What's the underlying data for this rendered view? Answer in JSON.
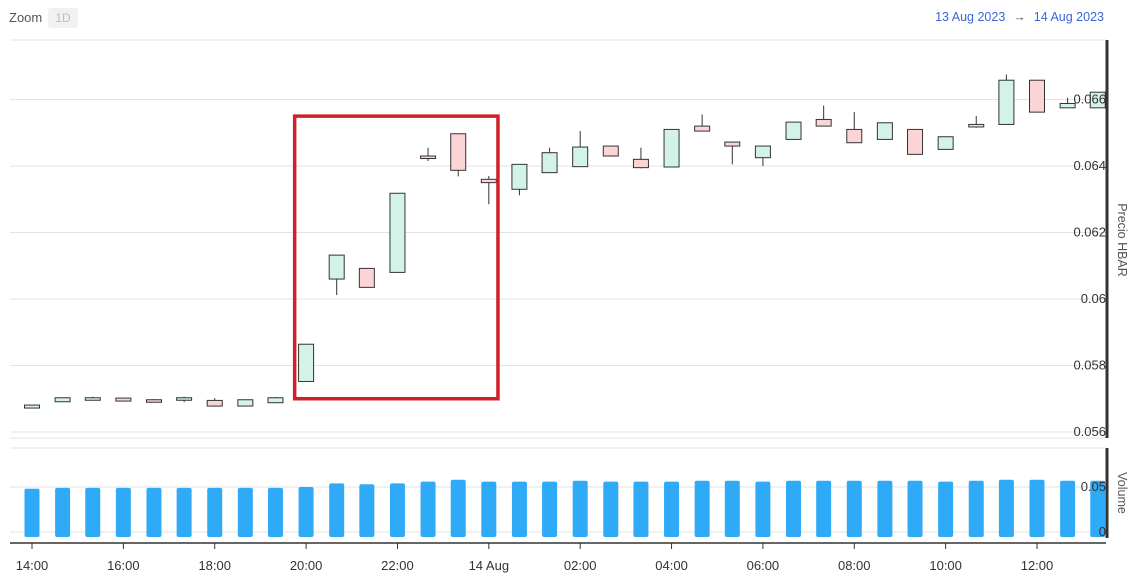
{
  "toolbar": {
    "zoom_label": "Zoom",
    "zoom_option": "1D",
    "range_start": "13 Aug 2023",
    "range_arrow": "→",
    "range_end": "14 Aug 2023"
  },
  "colors": {
    "up_fill": "#d2f3e6",
    "down_fill": "#fbd5d5",
    "candle_stroke": "#333333",
    "volume_fill": "#2eaaf7",
    "highlight_box": "#d0212a",
    "range_text": "#3b66d6",
    "grid": "#e3e3e3"
  },
  "chart_data": [
    {
      "type": "candlestick",
      "title": "",
      "ylabel": "Precio HBAR",
      "ylim": [
        0.056,
        0.068
      ],
      "y_ticks": [
        "0.056",
        "0.058",
        "0.06",
        "0.062",
        "0.064",
        "0.066"
      ],
      "x_ticks": [
        "14:00",
        "16:00",
        "18:00",
        "20:00",
        "22:00",
        "14 Aug",
        "02:00",
        "04:00",
        "06:00",
        "08:00",
        "10:00",
        "12:00"
      ],
      "x_tick_hours": [
        14,
        16,
        18,
        20,
        22,
        24,
        26,
        28,
        30,
        32,
        34,
        36
      ],
      "x_range_hours": [
        13.6,
        37.45
      ],
      "candles": [
        {
          "t": 14.0,
          "open": 0.05672,
          "high": 0.05682,
          "low": 0.05672,
          "close": 0.05681
        },
        {
          "t": 14.67,
          "open": 0.05691,
          "high": 0.05703,
          "low": 0.05691,
          "close": 0.05703
        },
        {
          "t": 15.33,
          "open": 0.05698,
          "high": 0.05706,
          "low": 0.05698,
          "close": 0.05703
        },
        {
          "t": 16.0,
          "open": 0.05702,
          "high": 0.05702,
          "low": 0.05692,
          "close": 0.05693
        },
        {
          "t": 16.67,
          "open": 0.05697,
          "high": 0.05699,
          "low": 0.05692,
          "close": 0.05693
        },
        {
          "t": 17.33,
          "open": 0.05697,
          "high": 0.05706,
          "low": 0.0569,
          "close": 0.05703
        },
        {
          "t": 18.0,
          "open": 0.05695,
          "high": 0.05702,
          "low": 0.05676,
          "close": 0.05678
        },
        {
          "t": 18.67,
          "open": 0.05678,
          "high": 0.05697,
          "low": 0.05678,
          "close": 0.05697
        },
        {
          "t": 19.33,
          "open": 0.05688,
          "high": 0.05705,
          "low": 0.05688,
          "close": 0.05703
        },
        {
          "t": 20.0,
          "open": 0.05752,
          "high": 0.05864,
          "low": 0.05752,
          "close": 0.05864
        },
        {
          "t": 20.67,
          "open": 0.0606,
          "high": 0.06132,
          "low": 0.06012,
          "close": 0.06132
        },
        {
          "t": 21.33,
          "open": 0.06092,
          "high": 0.06092,
          "low": 0.06035,
          "close": 0.06035
        },
        {
          "t": 22.0,
          "open": 0.0608,
          "high": 0.06318,
          "low": 0.0608,
          "close": 0.06318
        },
        {
          "t": 22.67,
          "open": 0.0643,
          "high": 0.06455,
          "low": 0.06415,
          "close": 0.06425
        },
        {
          "t": 23.33,
          "open": 0.06497,
          "high": 0.06497,
          "low": 0.06369,
          "close": 0.06387
        },
        {
          "t": 24.0,
          "open": 0.0636,
          "high": 0.0637,
          "low": 0.06285,
          "close": 0.0635
        },
        {
          "t": 24.67,
          "open": 0.0633,
          "high": 0.06405,
          "low": 0.06312,
          "close": 0.06405
        },
        {
          "t": 25.33,
          "open": 0.0638,
          "high": 0.06455,
          "low": 0.0638,
          "close": 0.0644
        },
        {
          "t": 26.0,
          "open": 0.06398,
          "high": 0.06505,
          "low": 0.06398,
          "close": 0.06457
        },
        {
          "t": 26.67,
          "open": 0.0646,
          "high": 0.0646,
          "low": 0.0643,
          "close": 0.0643
        },
        {
          "t": 27.33,
          "open": 0.0642,
          "high": 0.06455,
          "low": 0.06393,
          "close": 0.06395
        },
        {
          "t": 28.0,
          "open": 0.06397,
          "high": 0.0651,
          "low": 0.06397,
          "close": 0.0651
        },
        {
          "t": 28.67,
          "open": 0.0652,
          "high": 0.06555,
          "low": 0.06505,
          "close": 0.06505
        },
        {
          "t": 29.33,
          "open": 0.06472,
          "high": 0.06472,
          "low": 0.06405,
          "close": 0.0646
        },
        {
          "t": 30.0,
          "open": 0.06425,
          "high": 0.0646,
          "low": 0.064,
          "close": 0.0646
        },
        {
          "t": 30.67,
          "open": 0.0648,
          "high": 0.06532,
          "low": 0.0648,
          "close": 0.06532
        },
        {
          "t": 31.33,
          "open": 0.0654,
          "high": 0.06582,
          "low": 0.0652,
          "close": 0.0652
        },
        {
          "t": 32.0,
          "open": 0.0651,
          "high": 0.06562,
          "low": 0.0647,
          "close": 0.0647
        },
        {
          "t": 32.67,
          "open": 0.0648,
          "high": 0.0653,
          "low": 0.0648,
          "close": 0.0653
        },
        {
          "t": 33.33,
          "open": 0.0651,
          "high": 0.0651,
          "low": 0.06435,
          "close": 0.06435
        },
        {
          "t": 34.0,
          "open": 0.0645,
          "high": 0.06488,
          "low": 0.0645,
          "close": 0.06488
        },
        {
          "t": 34.67,
          "open": 0.0652,
          "high": 0.0655,
          "low": 0.06515,
          "close": 0.06525
        },
        {
          "t": 35.33,
          "open": 0.06525,
          "high": 0.06675,
          "low": 0.06525,
          "close": 0.06658
        },
        {
          "t": 36.0,
          "open": 0.06658,
          "high": 0.06658,
          "low": 0.06562,
          "close": 0.06562
        },
        {
          "t": 36.67,
          "open": 0.06575,
          "high": 0.06605,
          "low": 0.06575,
          "close": 0.06588
        },
        {
          "t": 37.33,
          "open": 0.06575,
          "high": 0.06622,
          "low": 0.06575,
          "close": 0.06622
        }
      ],
      "annotations": [
        {
          "type": "highlight-box",
          "t_from": 19.75,
          "t_to": 24.2,
          "y_from": 0.057,
          "y_to": 0.0655
        }
      ]
    },
    {
      "type": "bar",
      "ylabel": "Volume",
      "y_ticks": [
        "0",
        "0.05"
      ],
      "ylim": [
        0,
        0.085
      ],
      "values": [
        0.048,
        0.049,
        0.049,
        0.049,
        0.049,
        0.049,
        0.049,
        0.049,
        0.049,
        0.05,
        0.054,
        0.053,
        0.054,
        0.056,
        0.058,
        0.056,
        0.056,
        0.056,
        0.057,
        0.056,
        0.056,
        0.056,
        0.057,
        0.057,
        0.056,
        0.057,
        0.057,
        0.057,
        0.057,
        0.057,
        0.056,
        0.057,
        0.058,
        0.058,
        0.057,
        0.057
      ]
    }
  ]
}
